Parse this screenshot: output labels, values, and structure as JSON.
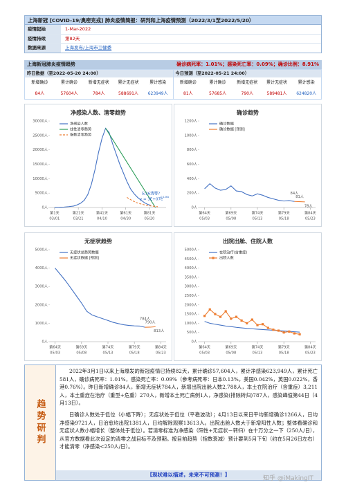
{
  "header": {
    "title": "上海新冠 [COVID-19/奥密克戎] 肺炎疫情简报：研判和上海疫情预测（2022/3/1至2022/5/20）",
    "rows": [
      [
        "疫情起始",
        "1-Mar-2022"
      ],
      [
        "疫情持续",
        "第82天"
      ],
      [
        "数据来源",
        "上海发布/上海市卫健委"
      ]
    ]
  },
  "trend": {
    "title": "上海新冠肺炎疫情趋势",
    "rates": "确诊病死率：1.01%；感染死亡率：0.09%；确诊比例：8.91%"
  },
  "stats": [
    {
      "heading": "昨日数据（至2022-05-20 24:00）",
      "labels": [
        "新增确诊",
        "累计确诊",
        "新增无症状",
        "累计无症状",
        "累计感染"
      ],
      "values": [
        "84人",
        "57604人",
        "784人",
        "588691人",
        "623949人"
      ]
    },
    {
      "heading": "今日预测（至2022-05-21 24:00）",
      "labels": [
        "新增确诊",
        "累计确诊",
        "新增无症状",
        "累计无症状",
        "累计感染"
      ],
      "values": [
        "81人",
        "57685人",
        "790人",
        "589481人",
        "624820人"
      ]
    }
  ],
  "chart_data": [
    {
      "type": "line",
      "title": "净感染人数、清零趋势",
      "legend": "upper left",
      "grid": false,
      "xlim": [
        -3,
        95
      ],
      "xticks": [
        {
          "value": 1,
          "label": "第1天"
        },
        {
          "value": 21,
          "label": "第21天"
        },
        {
          "value": 41,
          "label": "第41天"
        },
        {
          "value": 61,
          "label": "第61天"
        },
        {
          "value": 81,
          "label": "第81天"
        }
      ],
      "xtick_dates": [
        "03/01",
        "03/21",
        "04/10",
        "04/30",
        "05/20"
      ],
      "ylim": [
        0,
        30000
      ],
      "yticks": [
        {
          "value": 0,
          "label": "0人"
        },
        {
          "value": 5000,
          "label": "5000人"
        },
        {
          "value": 10000,
          "label": "10000人"
        },
        {
          "value": 15000,
          "label": "15000人"
        },
        {
          "value": 20000,
          "label": "20000人"
        },
        {
          "value": 25000,
          "label": "25000人"
        },
        {
          "value": 30000,
          "label": "30000人"
        }
      ],
      "series": [
        {
          "name": "净感染人数",
          "color": "#4472c4",
          "x": [
            1,
            5,
            9,
            13,
            17,
            20,
            23,
            26,
            29,
            32,
            35,
            38,
            41,
            44,
            47,
            50,
            53,
            56,
            59,
            62,
            65,
            68,
            71,
            74,
            77,
            80,
            82
          ],
          "values": [
            50,
            80,
            150,
            300,
            500,
            900,
            1500,
            2500,
            4500,
            8000,
            13000,
            19000,
            24000,
            27500,
            26000,
            22000,
            18500,
            15000,
            12000,
            9000,
            6500,
            4800,
            3500,
            2500,
            1600,
            1000,
            787
          ]
        },
        {
          "name": "线性清零趋势",
          "color": "#2e9e5b",
          "x": [
            44,
            86
          ],
          "values": [
            27500,
            0
          ]
        },
        {
          "name": "指数清零趋势",
          "color": "#ed7d31",
          "dash": true,
          "x": [
            62,
            66,
            70,
            74,
            78,
            82,
            86,
            88
          ],
          "values": [
            3500,
            2500,
            1700,
            1200,
            800,
            550,
            350,
            280
          ]
        }
      ],
      "annotations": [
        "5/26清零?",
        "y = 3E+07e",
        "-0.126x"
      ]
    },
    {
      "type": "line",
      "title": "确诊趋势",
      "legend": "upper left",
      "grid": false,
      "xlim": [
        63,
        85
      ],
      "xticks": [
        {
          "value": 64,
          "label": "第64天"
        },
        {
          "value": 69,
          "label": "第69天"
        },
        {
          "value": 74,
          "label": "第74天"
        },
        {
          "value": 79,
          "label": "第79天"
        },
        {
          "value": 84,
          "label": "第84天"
        }
      ],
      "xtick_dates": [
        "05/03",
        "05/08",
        "05/13",
        "05/18",
        "05/23"
      ],
      "ylim": [
        0,
        1200
      ],
      "yticks": [
        {
          "value": 0,
          "label": "0人"
        },
        {
          "value": 200,
          "label": "200人"
        },
        {
          "value": 400,
          "label": "400人"
        },
        {
          "value": 600,
          "label": "600人"
        },
        {
          "value": 800,
          "label": "800人"
        },
        {
          "value": 1000,
          "label": "1000人"
        },
        {
          "value": 1200,
          "label": "1200人"
        }
      ],
      "series": [
        {
          "name": "确诊数据",
          "color": "#4472c4",
          "x": [
            64,
            65,
            66,
            67,
            68,
            69,
            70,
            71,
            72,
            73,
            74,
            75,
            76,
            77,
            78,
            79,
            80,
            81
          ],
          "values": [
            260,
            330,
            270,
            240,
            250,
            300,
            230,
            220,
            180,
            160,
            190,
            170,
            140,
            120,
            100,
            90,
            95,
            84
          ]
        },
        {
          "name": "确诊数据 [预测]",
          "color": "#ed7d31",
          "x": [
            81,
            82,
            83
          ],
          "values": [
            84,
            81,
            78
          ],
          "value_labels": [
            "84人",
            "81人",
            "78人"
          ]
        }
      ]
    },
    {
      "type": "line",
      "title": "无症状趋势",
      "legend": "upper left",
      "grid": false,
      "xlim": [
        63,
        85
      ],
      "xticks": [
        {
          "value": 64,
          "label": "第64天"
        },
        {
          "value": 69,
          "label": "第69天"
        },
        {
          "value": 74,
          "label": "第74天"
        },
        {
          "value": 79,
          "label": "第79天"
        },
        {
          "value": 84,
          "label": "第84天"
        }
      ],
      "xtick_dates": [
        "05/03",
        "05/08",
        "05/13",
        "05/18",
        "05/23"
      ],
      "ylim": [
        0,
        5000
      ],
      "yticks": [
        {
          "value": 0,
          "label": "0人"
        },
        {
          "value": 1000,
          "label": "1000人"
        },
        {
          "value": 2000,
          "label": "2000人"
        },
        {
          "value": 3000,
          "label": "3000人"
        },
        {
          "value": 4000,
          "label": "4000人"
        },
        {
          "value": 5000,
          "label": "5000人"
        }
      ],
      "series": [
        {
          "name": "无症状总趋势数据",
          "color": "#4472c4",
          "x": [
            64,
            65,
            66,
            67,
            68,
            69,
            70,
            71,
            72,
            73,
            74,
            75,
            76,
            77,
            78,
            79,
            80,
            81
          ],
          "values": [
            4000,
            3650,
            3300,
            2900,
            2500,
            2100,
            1650,
            1450,
            1350,
            1250,
            1150,
            1050,
            980,
            920,
            880,
            860,
            850,
            784
          ]
        },
        {
          "name": "无症状数据 [预测]",
          "color": "#ed7d31",
          "x": [
            81,
            82,
            83
          ],
          "values": [
            784,
            790,
            813
          ],
          "value_labels": [
            "784人",
            "790人",
            "813人"
          ]
        }
      ]
    },
    {
      "type": "line",
      "title": "出院出舱、住院人数",
      "legend": "upper left",
      "grid": false,
      "xlim": [
        63,
        85
      ],
      "xticks": [
        {
          "value": 64,
          "label": "第64天"
        },
        {
          "value": 69,
          "label": "第69天"
        },
        {
          "value": 74,
          "label": "第74天"
        },
        {
          "value": 79,
          "label": "第79天"
        },
        {
          "value": 84,
          "label": "第84天"
        }
      ],
      "xtick_dates": [
        "05/03",
        "05/08",
        "05/13",
        "05/18",
        "05/23"
      ],
      "ylim": [
        0,
        5000
      ],
      "yticks": [
        {
          "value": 0,
          "label": "0人"
        },
        {
          "value": 500,
          "label": "500人"
        },
        {
          "value": 1000,
          "label": "1000人"
        },
        {
          "value": 1500,
          "label": "1500人"
        },
        {
          "value": 2000,
          "label": "2000人"
        },
        {
          "value": 2500,
          "label": "2500人"
        },
        {
          "value": 3000,
          "label": "3000人"
        },
        {
          "value": 3500,
          "label": "3500人"
        },
        {
          "value": 4000,
          "label": "4000人"
        },
        {
          "value": 4500,
          "label": "4500人"
        },
        {
          "value": 5000,
          "label": "5000人"
        }
      ],
      "series": [
        {
          "name": "在院治疗(含重症)",
          "color": "#4472c4",
          "x": [
            64,
            65,
            66,
            67,
            68,
            69,
            70,
            71,
            72,
            73,
            74,
            75,
            76,
            77,
            78,
            79,
            80,
            81,
            82
          ],
          "values": [
            1100,
            1000,
            950,
            900,
            850,
            820,
            780,
            750,
            720,
            700,
            680,
            660,
            640,
            620,
            600,
            580,
            560,
            540,
            520
          ]
        },
        {
          "name": "出院人数",
          "color": "#ed7d31",
          "marker": "square",
          "x": [
            64,
            65,
            66,
            67,
            68,
            69,
            70,
            71,
            72,
            73,
            74,
            75,
            76,
            77,
            78,
            79,
            80,
            81,
            82
          ],
          "values": [
            1400,
            1750,
            1500,
            1350,
            1650,
            1250,
            1350,
            1150,
            1000,
            1200,
            900,
            950,
            750,
            650,
            600,
            500,
            550,
            450,
            400
          ]
        }
      ]
    }
  ],
  "analysis": {
    "label": "趋势研判",
    "paragraphs": [
      "2022年3月1日以来上海爆发的新冠疫情已持续82天，累计确诊57,604人，累计净感染623,949人，累计死亡581人，确诊病死率：1.01%，感染死亡率：0.09%（参考病死率：日本0.13%，美国0.042%，英国0.022%，香港0.76%）。昨日新增确诊84人，新增无症状784人，新增出院出舱人数2,788人，本土在院治疗（含重症）3,211人，本土重症在治疗（重型+危重）270人，新增本土死亡病例1人，净感染(排除转归)787人，感染峰值第44日（4月13日）。",
      "日确诊人数处于低位（小幅下降）；无症状处于低位（平稳波动）；4月13日以来日平均新增确诊1266人，日均净感染9721人，日治愈均出院1381人，日均解除观察13613人。出院出舱人数大于新增阳性人数；整体看确诊和无症状人数小幅增长（整体处于低位）。若清零标准为净感染（阳性+无症状－转归）在十万分之一下（250人/日），从官方数据看此次设定的清零之战目标不及预期。按目前趋势（指数衰减）预计要到5月下旬（约在5月26日左右）才能清零（净感染<250人/日）。"
    ],
    "banner": "【现状难以描述，未来不可预测！】"
  },
  "watermark": "知乎 @iMakingIT"
}
